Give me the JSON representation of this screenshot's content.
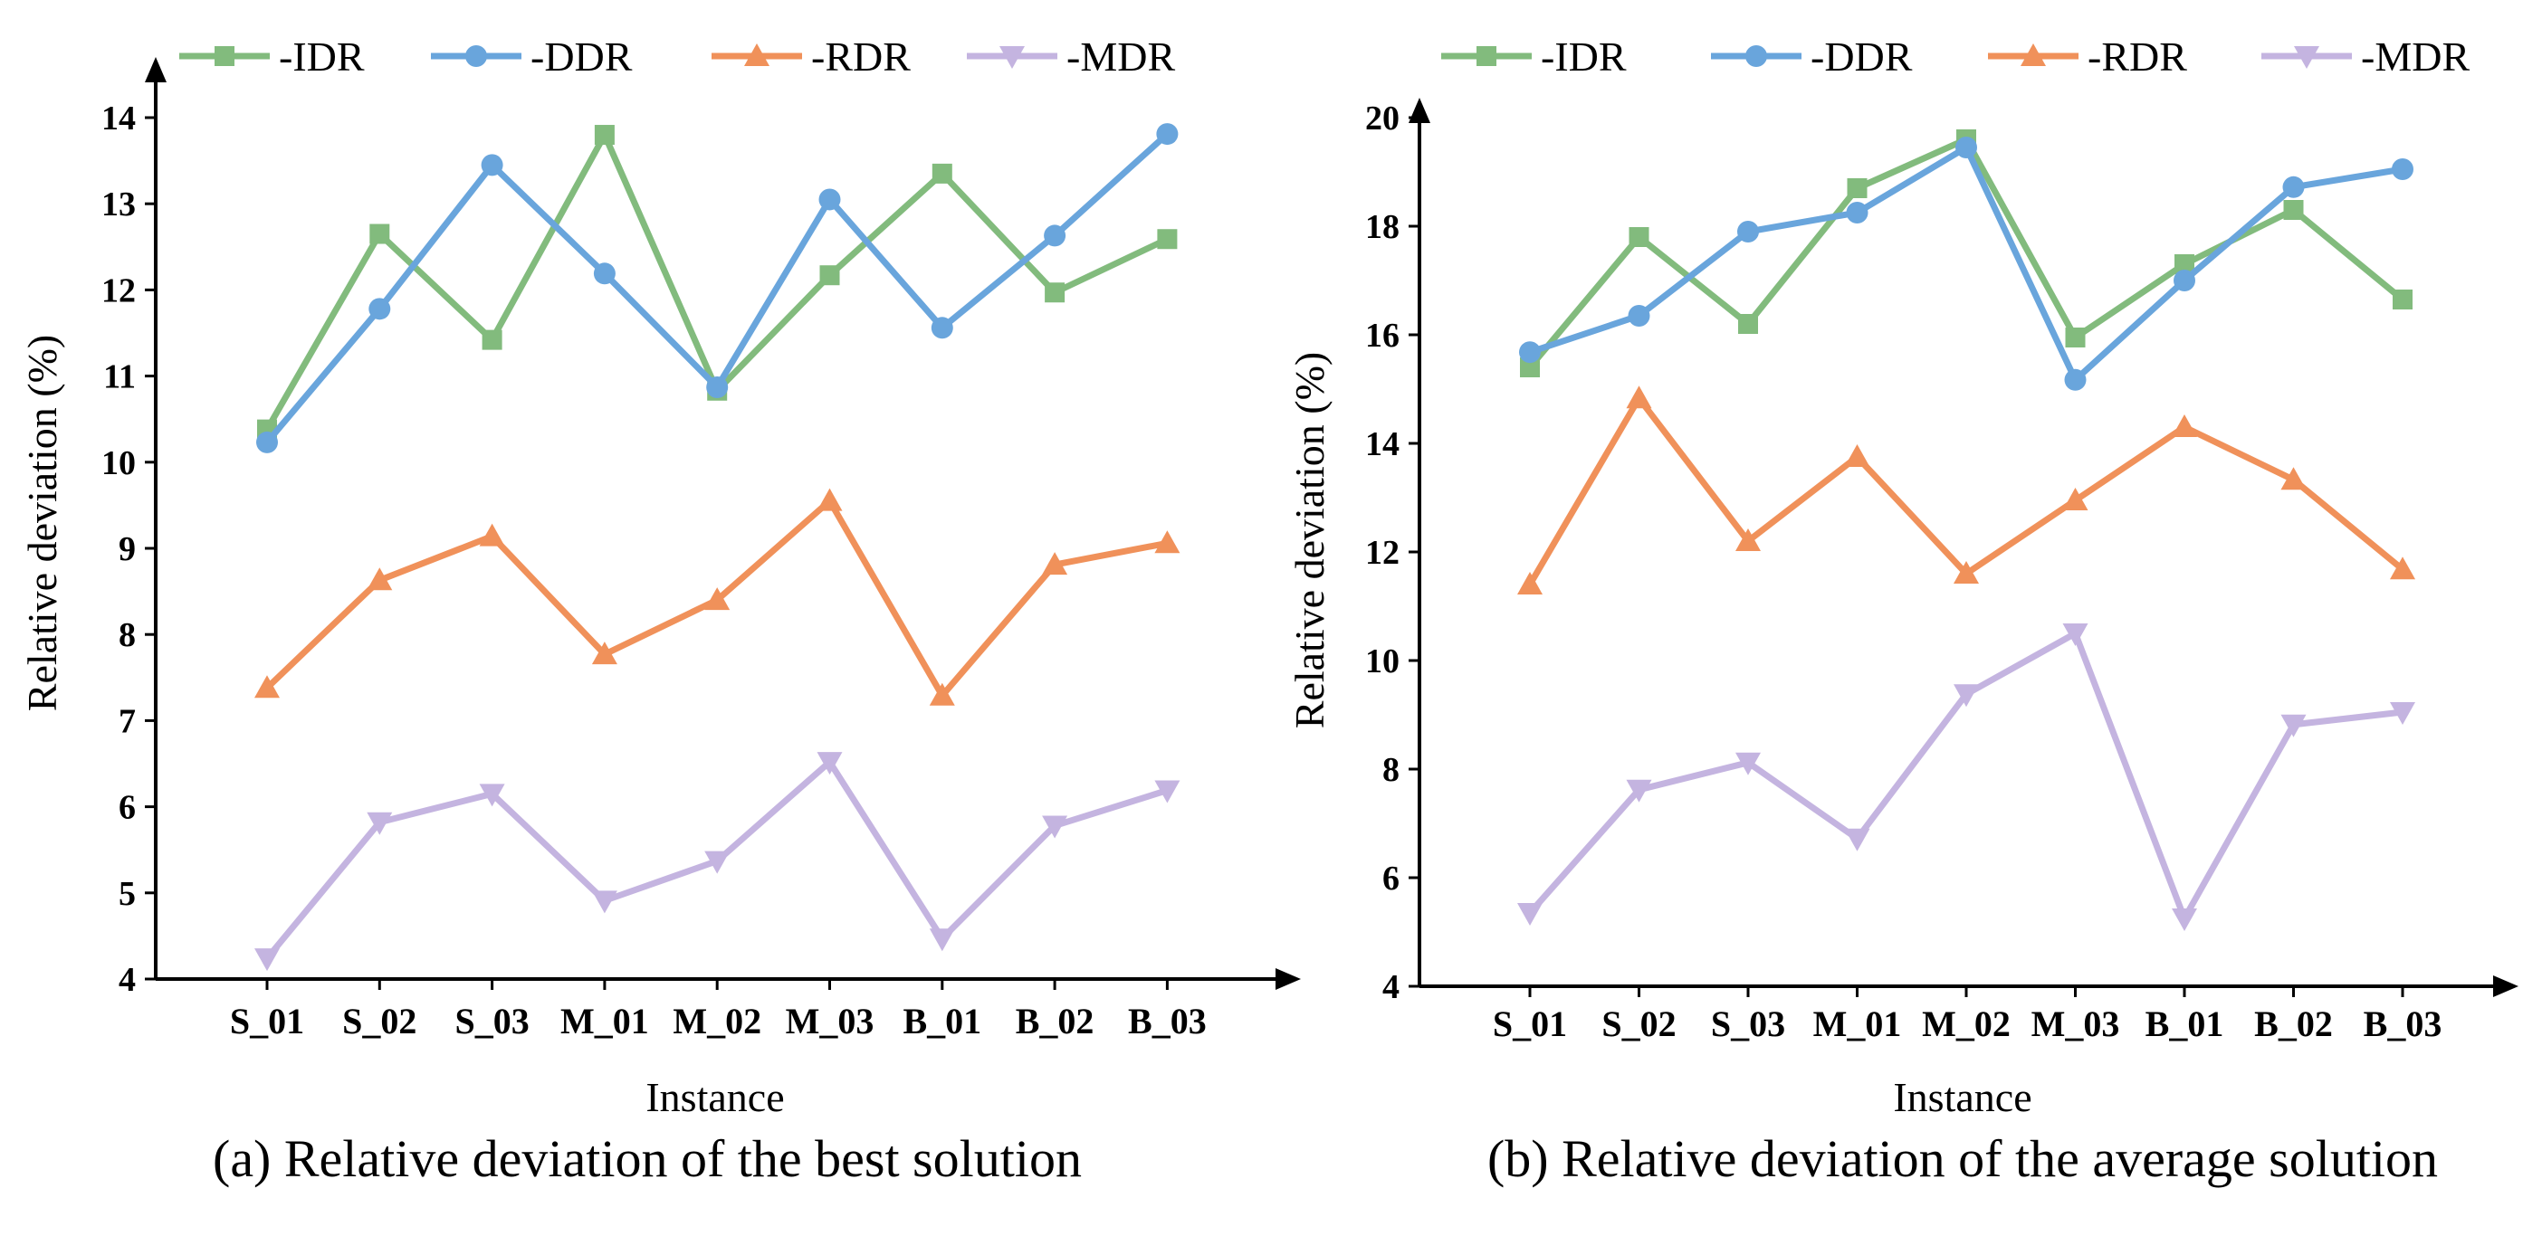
{
  "colors": {
    "IDR": "#82bb7d",
    "DDR": "#69a5dc",
    "RDR": "#f0915a",
    "MDR": "#c4b4e0"
  },
  "chart_data": [
    {
      "type": "line",
      "caption": "(a) Relative deviation of the best solution",
      "xlabel": "Instance",
      "ylabel": "Relative deviation (%)",
      "ylim": [
        4,
        14
      ],
      "yticks": [
        "4",
        "5",
        "6",
        "7",
        "8",
        "9",
        "10",
        "11",
        "12",
        "13",
        "14"
      ],
      "categories": [
        "S_01",
        "S_02",
        "S_03",
        "M_01",
        "M_02",
        "M_03",
        "B_01",
        "B_02",
        "B_03"
      ],
      "legend_position": "top",
      "series": [
        {
          "key": "IDR",
          "name": "-IDR",
          "marker": "square",
          "values": [
            10.38,
            12.65,
            11.42,
            13.8,
            10.83,
            12.17,
            13.35,
            11.97,
            12.59
          ]
        },
        {
          "key": "DDR",
          "name": "-DDR",
          "marker": "circle",
          "values": [
            10.23,
            11.78,
            13.45,
            12.19,
            10.87,
            13.05,
            11.56,
            12.63,
            13.81
          ]
        },
        {
          "key": "RDR",
          "name": "-RDR",
          "marker": "triangle-up",
          "values": [
            7.38,
            8.63,
            9.14,
            7.77,
            8.4,
            9.55,
            7.29,
            8.81,
            9.06
          ]
        },
        {
          "key": "MDR",
          "name": "-MDR",
          "marker": "triangle-down",
          "values": [
            4.24,
            5.82,
            6.15,
            4.91,
            5.37,
            6.52,
            4.47,
            5.78,
            6.19
          ]
        }
      ]
    },
    {
      "type": "line",
      "caption": "(b) Relative deviation of the average solution",
      "xlabel": "Instance",
      "ylabel": "Relative deviation (%)",
      "ylim": [
        4,
        20
      ],
      "yticks": [
        "4",
        "6",
        "8",
        "10",
        "12",
        "14",
        "16",
        "18",
        "20"
      ],
      "categories": [
        "S_01",
        "S_02",
        "S_03",
        "M_01",
        "M_02",
        "M_03",
        "B_01",
        "B_02",
        "B_03"
      ],
      "legend_position": "top",
      "series": [
        {
          "key": "IDR",
          "name": "-IDR",
          "marker": "square",
          "values": [
            15.4,
            17.8,
            16.2,
            18.7,
            19.6,
            15.95,
            17.3,
            18.3,
            16.65
          ]
        },
        {
          "key": "DDR",
          "name": "-DDR",
          "marker": "circle",
          "values": [
            15.68,
            16.35,
            17.9,
            18.25,
            19.45,
            15.17,
            17.0,
            18.72,
            19.05
          ]
        },
        {
          "key": "RDR",
          "name": "-RDR",
          "marker": "triangle-up",
          "values": [
            11.4,
            14.83,
            12.2,
            13.75,
            11.6,
            12.95,
            14.3,
            13.33,
            11.68
          ]
        },
        {
          "key": "MDR",
          "name": "-MDR",
          "marker": "triangle-down",
          "values": [
            5.35,
            7.62,
            8.12,
            6.72,
            9.38,
            10.5,
            5.25,
            8.82,
            9.05
          ]
        }
      ]
    }
  ]
}
